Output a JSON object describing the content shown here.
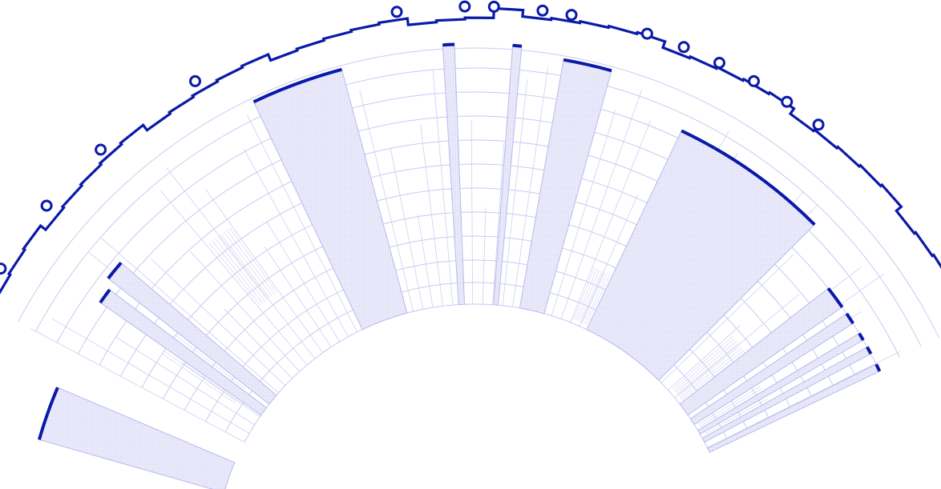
{
  "diagram": {
    "kind": "radial-tree",
    "colors": {
      "accent": "#0a1aa8",
      "line": "#c9c9f2",
      "fill": "#e9e9fb",
      "background": "#ffffff"
    }
  }
}
